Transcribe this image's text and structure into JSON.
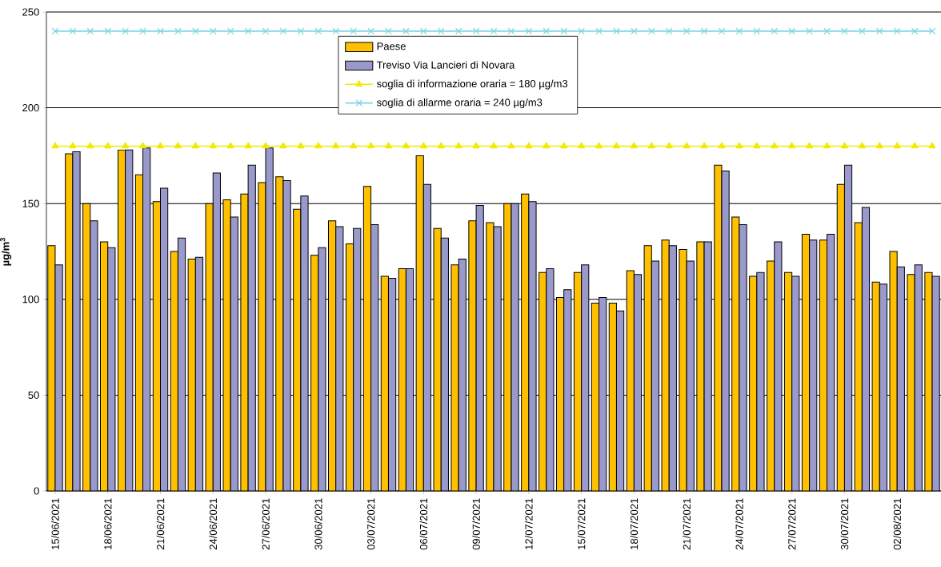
{
  "chart_data": {
    "type": "bar",
    "ylabel": "µg/m$^{3}$",
    "categories": [
      "15/06/2021",
      null,
      null,
      "18/06/2021",
      null,
      null,
      "21/06/2021",
      null,
      null,
      "24/06/2021",
      null,
      null,
      "27/06/2021",
      null,
      null,
      "30/06/2021",
      null,
      null,
      "03/07/2021",
      null,
      null,
      "06/07/2021",
      null,
      null,
      "09/07/2021",
      null,
      null,
      "12/07/2021",
      null,
      null,
      "15/07/2021",
      null,
      null,
      "18/07/2021",
      null,
      null,
      "21/07/2021",
      null,
      null,
      "24/07/2021",
      null,
      null,
      "27/07/2021",
      null,
      null,
      "30/07/2021",
      null,
      null,
      "02/08/2021",
      null,
      null
    ],
    "series": [
      {
        "name": "Paese",
        "color": "#ffc000",
        "values": [
          128,
          176,
          150,
          130,
          178,
          165,
          151,
          125,
          121,
          150,
          152,
          155,
          161,
          164,
          147,
          123,
          141,
          129,
          159,
          112,
          116,
          175,
          137,
          118,
          141,
          140,
          150,
          155,
          114,
          101,
          114,
          98,
          98,
          115,
          128,
          131,
          126,
          130,
          170,
          143,
          112,
          120,
          114,
          134,
          131,
          160,
          140,
          109,
          125,
          113,
          114
        ]
      },
      {
        "name": "Treviso Via Lancieri di Novara",
        "color": "#9999cc",
        "values": [
          118,
          177,
          141,
          127,
          178,
          179,
          158,
          132,
          122,
          166,
          143,
          170,
          179,
          162,
          154,
          127,
          138,
          137,
          139,
          111,
          116,
          160,
          132,
          121,
          149,
          138,
          150,
          151,
          116,
          105,
          118,
          101,
          94,
          113,
          120,
          128,
          120,
          130,
          167,
          139,
          114,
          130,
          112,
          131,
          134,
          170,
          148,
          108,
          117,
          118,
          112
        ]
      },
      {
        "name": "soglia di informazione oraria = 180 µg/m3",
        "type": "line",
        "marker": "triangle",
        "color": "#f2ea00",
        "values": [
          180,
          180,
          180,
          180,
          180,
          180,
          180,
          180,
          180,
          180,
          180,
          180,
          180,
          180,
          180,
          180,
          180,
          180,
          180,
          180,
          180,
          180,
          180,
          180,
          180,
          180,
          180,
          180,
          180,
          180,
          180,
          180,
          180,
          180,
          180,
          180,
          180,
          180,
          180,
          180,
          180,
          180,
          180,
          180,
          180,
          180,
          180,
          180,
          180,
          180,
          180
        ]
      },
      {
        "name": "soglia di allarme oraria = 240 µg/m3",
        "type": "line",
        "marker": "cross",
        "color": "#80d4e6",
        "values": [
          240,
          240,
          240,
          240,
          240,
          240,
          240,
          240,
          240,
          240,
          240,
          240,
          240,
          240,
          240,
          240,
          240,
          240,
          240,
          240,
          240,
          240,
          240,
          240,
          240,
          240,
          240,
          240,
          240,
          240,
          240,
          240,
          240,
          240,
          240,
          240,
          240,
          240,
          240,
          240,
          240,
          240,
          240,
          240,
          240,
          240,
          240,
          240,
          240,
          240,
          240
        ]
      }
    ],
    "ylim": [
      0,
      250
    ],
    "yticks": [
      0,
      50,
      100,
      150,
      200,
      250
    ],
    "grid": "y",
    "legend": "top"
  }
}
